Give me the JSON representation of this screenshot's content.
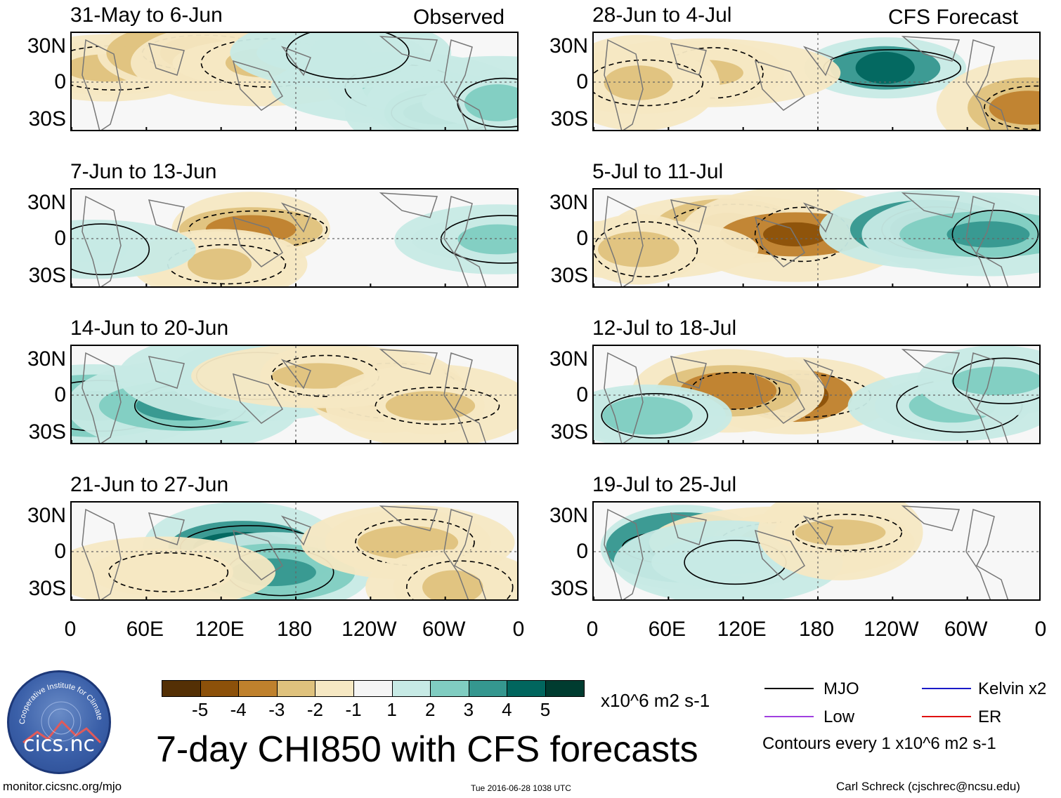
{
  "header": {
    "left_label": "Observed",
    "right_label": "CFS Forecast"
  },
  "panels_left": [
    {
      "title": "31-May to 6-Jun"
    },
    {
      "title": "7-Jun to 13-Jun"
    },
    {
      "title": "14-Jun to 20-Jun"
    },
    {
      "title": "21-Jun to 27-Jun"
    }
  ],
  "panels_right": [
    {
      "title": "28-Jun to 4-Jul"
    },
    {
      "title": "5-Jul to 11-Jul"
    },
    {
      "title": "12-Jul to 18-Jul"
    },
    {
      "title": "19-Jul to 25-Jul"
    }
  ],
  "y_ticks": [
    "30N",
    "0",
    "30S"
  ],
  "x_ticks": [
    "0",
    "60E",
    "120E",
    "180",
    "120W",
    "60W",
    "0"
  ],
  "colorbar": {
    "labels": [
      "-5",
      "-4",
      "-3",
      "-2",
      "-1",
      "1",
      "2",
      "3",
      "4",
      "5"
    ],
    "colors": [
      "#543005",
      "#8c510a",
      "#bf812d",
      "#dfc27d",
      "#f6e8c3",
      "#f5f5f5",
      "#c7eae5",
      "#80cdc1",
      "#35978f",
      "#01665e",
      "#003c30"
    ],
    "units": "x10^6 m2 s-1"
  },
  "legend": {
    "mjo": "MJO",
    "kelvin": "Kelvin x2",
    "low": "Low",
    "er": "ER",
    "mjo_color": "#000000",
    "kelvin_color": "#1a1ac8",
    "low_color": "#a040e0",
    "er_color": "#e01010",
    "contours_note": "Contours every 1 x10^6 m2 s-1"
  },
  "logo": {
    "text": "cics.nc",
    "ring_text": "Cooperative Institute for Climate and Satellites"
  },
  "main_title": "7-day CHI850 with CFS forecasts",
  "footer": {
    "left": "monitor.cicsnc.org/mjo",
    "center": "Tue 2016-06-28 1038 UTC",
    "right": "Carl Schreck (cjschrec@ncsu.edu)"
  }
}
